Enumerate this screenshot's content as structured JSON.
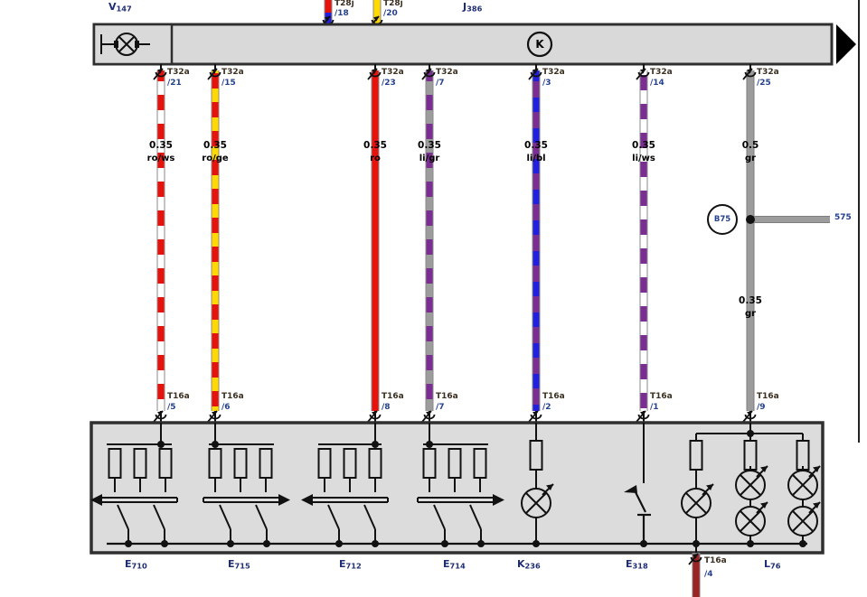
{
  "controller": {
    "label": "J386",
    "motor_label": "V147",
    "internal_marker": "K"
  },
  "top_inputs": [
    {
      "connector": "T28j",
      "pin": "/18"
    },
    {
      "connector": "T28j",
      "pin": "/20"
    }
  ],
  "wires": [
    {
      "top_connector": "T32a",
      "top_pin": "/21",
      "gauge": "0.35",
      "color_code": "ro/ws",
      "bottom_connector": "T16a",
      "bottom_pin": "/5"
    },
    {
      "top_connector": "T32a",
      "top_pin": "/15",
      "gauge": "0.35",
      "color_code": "ro/ge",
      "bottom_connector": "T16a",
      "bottom_pin": "/6"
    },
    {
      "top_connector": "T32a",
      "top_pin": "/23",
      "gauge": "0.35",
      "color_code": "ro",
      "bottom_connector": "T16a",
      "bottom_pin": "/8"
    },
    {
      "top_connector": "T32a",
      "top_pin": "/7",
      "gauge": "0.35",
      "color_code": "li/gr",
      "bottom_connector": "T16a",
      "bottom_pin": "/7"
    },
    {
      "top_connector": "T32a",
      "top_pin": "/3",
      "gauge": "0.35",
      "color_code": "li/bl",
      "bottom_connector": "T16a",
      "bottom_pin": "/2"
    },
    {
      "top_connector": "T32a",
      "top_pin": "/14",
      "gauge": "0.35",
      "color_code": "li/ws",
      "bottom_connector": "T16a",
      "bottom_pin": "/1"
    },
    {
      "top_connector": "T32a",
      "top_pin": "/25",
      "gauge": "0.5",
      "color_code": "gr",
      "bottom_connector": "T16a",
      "bottom_pin": "/9"
    }
  ],
  "junction": {
    "circle_label": "B75",
    "right_ref": "575",
    "lower_gauge": "0.35",
    "lower_color_code": "gr"
  },
  "components": {
    "switch1": "E710",
    "switch2": "E715",
    "switch3": "E712",
    "switch4": "E714",
    "lamp_unit": "K236",
    "button": "E318",
    "illumination": "L76"
  },
  "bottom_exit": {
    "connector": "T16a",
    "pin": "/4"
  },
  "colors": {
    "red": "#e8120c",
    "yellow": "#ffd900",
    "blue": "#2020dd",
    "violet": "#7b2e91",
    "grey": "#9c9c9c",
    "white": "#ffffff",
    "dark_red": "#9b2323"
  }
}
